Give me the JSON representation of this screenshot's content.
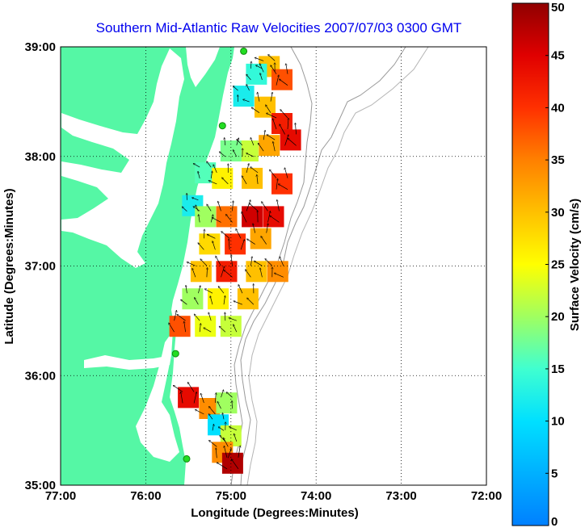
{
  "chart_data": {
    "type": "heatmap",
    "title": "Southern Mid-Atlantic Raw Velocities 2007/07/03 0300 GMT",
    "xlabel": "Longitude (Degrees:Minutes)",
    "ylabel": "Latitude (Degrees:Minutes)",
    "x_ticks": [
      {
        "value": -77,
        "label": "77:00"
      },
      {
        "value": -76,
        "label": "76:00"
      },
      {
        "value": -75,
        "label": "75:00"
      },
      {
        "value": -74,
        "label": "74:00"
      },
      {
        "value": -73,
        "label": "73:00"
      },
      {
        "value": -72,
        "label": "72:00"
      }
    ],
    "y_ticks": [
      {
        "value": 39,
        "label": "39:00"
      },
      {
        "value": 38,
        "label": "38:00"
      },
      {
        "value": 37,
        "label": "37:00"
      },
      {
        "value": 36,
        "label": "36:00"
      },
      {
        "value": 35,
        "label": "35:00"
      }
    ],
    "xlim": [
      -77,
      -72
    ],
    "ylim": [
      35,
      39
    ],
    "grid": true,
    "colorbar": {
      "label": "Surface Velocity (cm/s)",
      "range": [
        0,
        50
      ],
      "ticks": [
        0,
        5,
        10,
        15,
        20,
        25,
        30,
        35,
        40,
        45,
        50
      ]
    },
    "land_color": "#55f7a5",
    "station_color": "#22dd22",
    "stations": [
      {
        "lon": -74.85,
        "lat": 38.96
      },
      {
        "lon": -75.1,
        "lat": 38.28
      },
      {
        "lon": -75.65,
        "lat": 36.2
      },
      {
        "lon": -75.52,
        "lat": 35.24
      }
    ],
    "velocity_cells": [
      {
        "lon": -74.55,
        "lat": 38.82,
        "speed": 30
      },
      {
        "lon": -74.4,
        "lat": 38.7,
        "speed": 38
      },
      {
        "lon": -74.7,
        "lat": 38.75,
        "speed": 14
      },
      {
        "lon": -74.85,
        "lat": 38.55,
        "speed": 12
      },
      {
        "lon": -74.6,
        "lat": 38.45,
        "speed": 30
      },
      {
        "lon": -74.4,
        "lat": 38.3,
        "speed": 42
      },
      {
        "lon": -74.3,
        "lat": 38.15,
        "speed": 44
      },
      {
        "lon": -74.55,
        "lat": 38.1,
        "speed": 32
      },
      {
        "lon": -74.8,
        "lat": 38.05,
        "speed": 22
      },
      {
        "lon": -75.0,
        "lat": 38.05,
        "speed": 18
      },
      {
        "lon": -75.3,
        "lat": 37.85,
        "speed": 16
      },
      {
        "lon": -75.1,
        "lat": 37.8,
        "speed": 26
      },
      {
        "lon": -74.75,
        "lat": 37.8,
        "speed": 30
      },
      {
        "lon": -74.4,
        "lat": 37.75,
        "speed": 40
      },
      {
        "lon": -75.45,
        "lat": 37.55,
        "speed": 12
      },
      {
        "lon": -75.3,
        "lat": 37.45,
        "speed": 20
      },
      {
        "lon": -75.05,
        "lat": 37.45,
        "speed": 36
      },
      {
        "lon": -74.75,
        "lat": 37.45,
        "speed": 46
      },
      {
        "lon": -74.5,
        "lat": 37.45,
        "speed": 44
      },
      {
        "lon": -75.25,
        "lat": 37.2,
        "speed": 28
      },
      {
        "lon": -74.95,
        "lat": 37.2,
        "speed": 40
      },
      {
        "lon": -74.65,
        "lat": 37.25,
        "speed": 32
      },
      {
        "lon": -75.35,
        "lat": 36.95,
        "speed": 30
      },
      {
        "lon": -75.05,
        "lat": 36.95,
        "speed": 42
      },
      {
        "lon": -74.7,
        "lat": 36.95,
        "speed": 30
      },
      {
        "lon": -74.45,
        "lat": 36.95,
        "speed": 34
      },
      {
        "lon": -75.45,
        "lat": 36.7,
        "speed": 20
      },
      {
        "lon": -75.15,
        "lat": 36.7,
        "speed": 26
      },
      {
        "lon": -74.8,
        "lat": 36.7,
        "speed": 30
      },
      {
        "lon": -75.6,
        "lat": 36.45,
        "speed": 38
      },
      {
        "lon": -75.3,
        "lat": 36.45,
        "speed": 24
      },
      {
        "lon": -75.0,
        "lat": 36.45,
        "speed": 22
      },
      {
        "lon": -75.5,
        "lat": 35.8,
        "speed": 44
      },
      {
        "lon": -75.25,
        "lat": 35.7,
        "speed": 34
      },
      {
        "lon": -75.05,
        "lat": 35.75,
        "speed": 20
      },
      {
        "lon": -75.15,
        "lat": 35.55,
        "speed": 10
      },
      {
        "lon": -75.0,
        "lat": 35.45,
        "speed": 22
      },
      {
        "lon": -75.1,
        "lat": 35.3,
        "speed": 34
      },
      {
        "lon": -74.98,
        "lat": 35.2,
        "speed": 48
      }
    ]
  }
}
